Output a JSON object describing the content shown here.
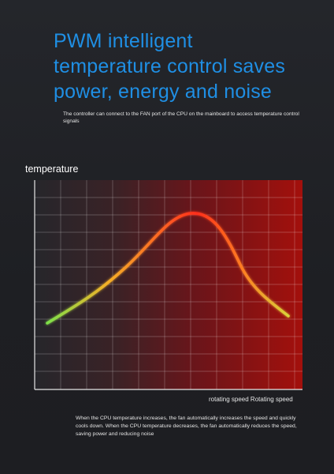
{
  "headline": {
    "line1": "PWM intelligent",
    "line2": "temperature control saves",
    "line3": "power, energy and noise"
  },
  "intro_text": "The controller can connect to the FAN port of the CPU on the mainboard to access temperature control signals",
  "chart": {
    "y_label": "temperature",
    "x_label": "rotating speed Rotating speed",
    "colors": {
      "curve_start": "#7ee04a",
      "curve_mid": "#f5a623",
      "curve_peak": "#ff3b1f",
      "background_dark": "#26262b",
      "background_red": "#a3100c"
    }
  },
  "footer_text": "When the CPU temperature increases, the fan automatically increases the speed and quickly cools down. When the CPU temperature decreases, the fan automatically reduces the speed, saving power and reducing noise"
}
